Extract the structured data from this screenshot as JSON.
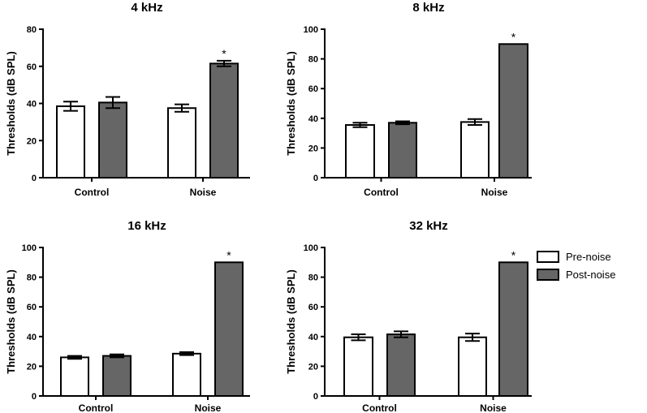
{
  "chart_data": [
    {
      "type": "bar",
      "title": "4 kHz",
      "ylabel": "Thresholds (dB SPL)",
      "ylim": [
        0,
        80
      ],
      "yticks": [
        0,
        20,
        40,
        60,
        80
      ],
      "categories": [
        "Control",
        "Noise"
      ],
      "series": [
        {
          "name": "Pre-noise",
          "values": [
            38.5,
            37.5
          ],
          "errors": [
            2.5,
            2
          ]
        },
        {
          "name": "Post-noise",
          "values": [
            40.5,
            61.5
          ],
          "errors": [
            3,
            1.5
          ]
        }
      ],
      "annotations": [
        {
          "category": "Noise",
          "series": "Post-noise",
          "text": "*"
        }
      ]
    },
    {
      "type": "bar",
      "title": "8 kHz",
      "ylabel": "Thresholds (dB SPL)",
      "ylim": [
        0,
        100
      ],
      "yticks": [
        0,
        20,
        40,
        60,
        80,
        100
      ],
      "categories": [
        "Control",
        "Noise"
      ],
      "series": [
        {
          "name": "Pre-noise",
          "values": [
            35.5,
            37.5
          ],
          "errors": [
            1.5,
            2
          ]
        },
        {
          "name": "Post-noise",
          "values": [
            37,
            90
          ],
          "errors": [
            1,
            0
          ]
        }
      ],
      "annotations": [
        {
          "category": "Noise",
          "series": "Post-noise",
          "text": "*"
        }
      ]
    },
    {
      "type": "bar",
      "title": "16 kHz",
      "ylabel": "Thresholds (dB SPL)",
      "ylim": [
        0,
        100
      ],
      "yticks": [
        0,
        20,
        40,
        60,
        80,
        100
      ],
      "categories": [
        "Control",
        "Noise"
      ],
      "series": [
        {
          "name": "Pre-noise",
          "values": [
            26,
            28.5
          ],
          "errors": [
            1,
            1
          ]
        },
        {
          "name": "Post-noise",
          "values": [
            27,
            90
          ],
          "errors": [
            1,
            0
          ]
        }
      ],
      "annotations": [
        {
          "category": "Noise",
          "series": "Post-noise",
          "text": "*"
        }
      ]
    },
    {
      "type": "bar",
      "title": "32 kHz",
      "ylabel": "Thresholds (dB SPL)",
      "ylim": [
        0,
        100
      ],
      "yticks": [
        0,
        20,
        40,
        60,
        80,
        100
      ],
      "categories": [
        "Control",
        "Noise"
      ],
      "series": [
        {
          "name": "Pre-noise",
          "values": [
            39.5,
            39.5
          ],
          "errors": [
            2,
            2.5
          ]
        },
        {
          "name": "Post-noise",
          "values": [
            41.5,
            90
          ],
          "errors": [
            2,
            0
          ]
        }
      ],
      "annotations": [
        {
          "category": "Noise",
          "series": "Post-noise",
          "text": "*"
        }
      ]
    }
  ],
  "legend": {
    "items": [
      {
        "label": "Pre-noise",
        "color": "#ffffff"
      },
      {
        "label": "Post-noise",
        "color": "#666666"
      }
    ]
  },
  "colors": {
    "pre": "#ffffff",
    "post": "#666666",
    "stroke": "#000000"
  }
}
